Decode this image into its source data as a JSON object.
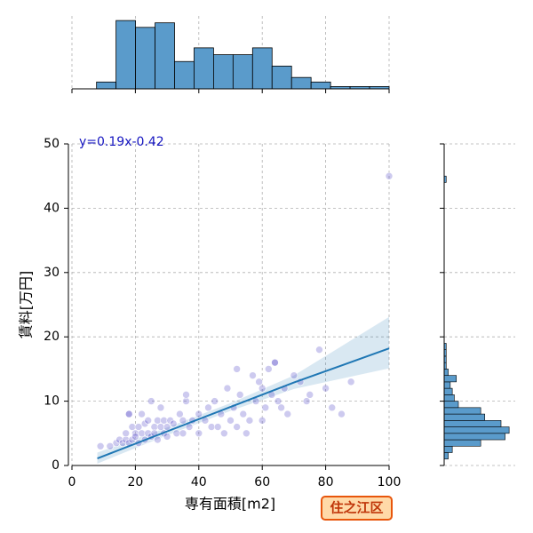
{
  "chart_data": [
    {
      "type": "scatter",
      "xlabel": "専有面積[m2]",
      "ylabel": "賃料[万円]",
      "annotation": "y=0.19x-0.42",
      "color": "#4b3fc4",
      "xlim": [
        0,
        100
      ],
      "ylim": [
        0,
        50
      ],
      "xticks": [
        0,
        20,
        40,
        60,
        80,
        100
      ],
      "yticks": [
        0,
        10,
        20,
        30,
        40,
        50
      ],
      "grid": true,
      "x": [
        9,
        12,
        14,
        15,
        16,
        17,
        17,
        18,
        18,
        19,
        19,
        20,
        20,
        21,
        21,
        22,
        22,
        23,
        23,
        24,
        24,
        25,
        25,
        26,
        26,
        27,
        27,
        28,
        28,
        29,
        29,
        30,
        30,
        31,
        32,
        33,
        34,
        35,
        35,
        36,
        37,
        38,
        40,
        40,
        42,
        43,
        44,
        45,
        46,
        47,
        48,
        49,
        50,
        51,
        52,
        53,
        54,
        55,
        56,
        57,
        58,
        59,
        60,
        60,
        61,
        62,
        63,
        64,
        65,
        66,
        67,
        68,
        70,
        72,
        74,
        75,
        78,
        80,
        82,
        85,
        88,
        100,
        18,
        36,
        52,
        64
      ],
      "y": [
        3,
        3,
        3.5,
        4,
        3.5,
        4,
        5,
        8,
        3.5,
        4,
        6,
        5,
        4.5,
        3.5,
        6,
        5,
        8,
        4,
        6.5,
        5,
        7,
        4.5,
        10,
        6,
        5,
        7,
        4,
        6,
        9,
        5,
        7,
        6,
        4.5,
        7,
        6.5,
        5,
        8,
        7,
        5,
        10,
        6,
        7,
        8,
        5,
        7,
        9,
        6,
        10,
        6,
        8,
        5,
        12,
        7,
        9,
        6,
        11,
        8,
        5,
        7,
        14,
        10,
        13,
        12,
        7,
        9,
        15,
        11,
        16,
        10,
        9,
        12,
        8,
        14,
        13,
        10,
        11,
        18,
        12,
        9,
        8,
        13,
        45,
        8,
        11,
        15,
        16
      ],
      "regression": {
        "color": "#1f77b4",
        "x": [
          8,
          30,
          50,
          70,
          100
        ],
        "y": [
          1.1,
          5.3,
          9.1,
          12.9,
          18.2
        ],
        "lower": [
          0.3,
          4.7,
          8.5,
          11.9,
          15.1
        ],
        "upper": [
          2.0,
          5.9,
          9.7,
          14.0,
          23.1
        ]
      }
    },
    {
      "type": "histogram",
      "orientation": "vertical",
      "color": "#5a9bcb",
      "xlim": [
        0,
        100
      ],
      "ylim": [
        0,
        32
      ],
      "xticks": [
        0,
        20,
        40,
        60,
        80,
        100
      ],
      "grid": true,
      "bins": [
        7.75,
        13.9,
        20.05,
        26.2,
        32.35,
        38.5,
        44.65,
        50.8,
        56.95,
        63.1,
        69.25,
        75.4,
        81.55,
        87.7,
        93.85,
        100
      ],
      "values": [
        3,
        30,
        27,
        29,
        12,
        18,
        15,
        15,
        18,
        10,
        5,
        3,
        1,
        1,
        1
      ]
    },
    {
      "type": "histogram",
      "orientation": "horizontal",
      "color": "#5a9bcb",
      "xlim": [
        0,
        35
      ],
      "ylim": [
        0,
        50
      ],
      "yticks": [
        0,
        10,
        20,
        30,
        40,
        50
      ],
      "grid": true,
      "bins": [
        1,
        2,
        3,
        4,
        5,
        6,
        7,
        8,
        9,
        10,
        11,
        12,
        13,
        14,
        15,
        16,
        17,
        18,
        19,
        20,
        21,
        22,
        23,
        24,
        25,
        26,
        27,
        28,
        29,
        30,
        31,
        32,
        33,
        34,
        35,
        36,
        37,
        38,
        39,
        40,
        41,
        42,
        43,
        44,
        45,
        46
      ],
      "values": [
        2,
        4,
        18,
        30,
        32,
        28,
        20,
        18,
        7,
        5,
        4,
        3,
        6,
        2,
        1,
        1,
        1,
        1,
        0,
        0,
        0,
        0,
        0,
        0,
        0,
        0,
        0,
        0,
        0,
        0,
        0,
        0,
        0,
        0,
        0,
        0,
        0,
        0,
        0,
        0,
        0,
        0,
        0,
        1,
        0
      ]
    }
  ],
  "badge": "住之江区"
}
